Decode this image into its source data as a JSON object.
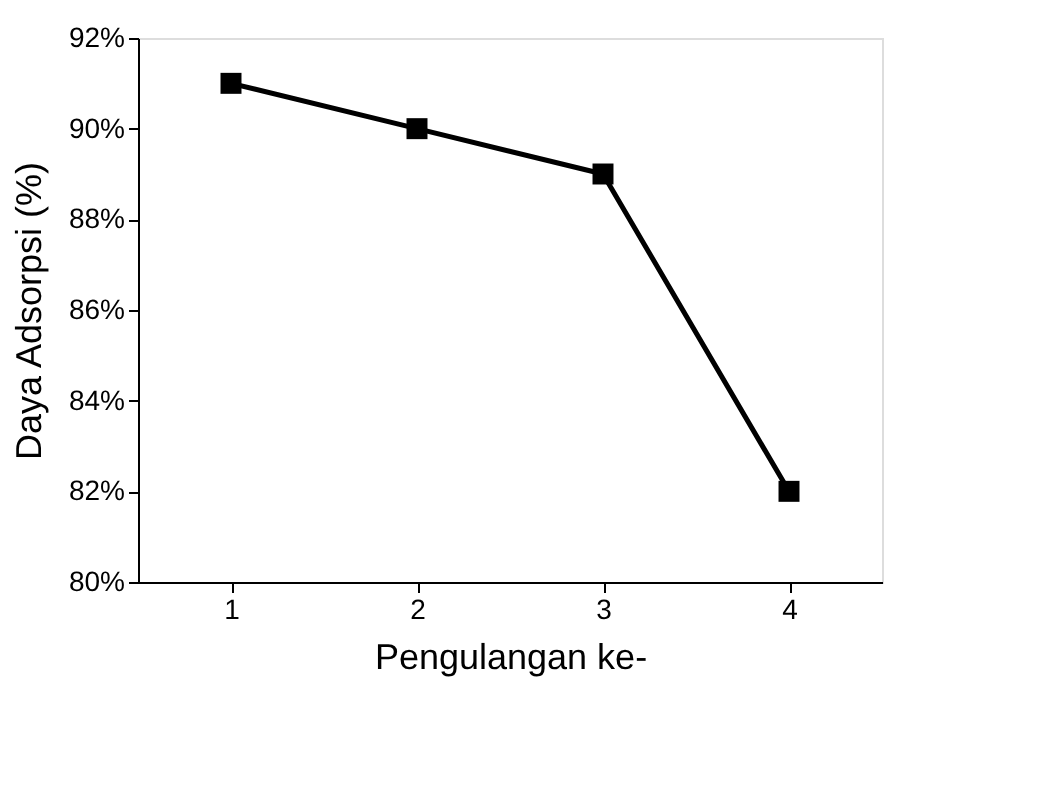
{
  "chart_data": {
    "type": "line",
    "xlabel": "Pengulangan ke-",
    "ylabel": "Daya Adsorpsi (%)",
    "categories": [
      "1",
      "2",
      "3",
      "4"
    ],
    "series": [
      {
        "color": "#000000",
        "values": [
          91,
          90,
          89,
          82
        ]
      }
    ],
    "ylim": [
      80,
      92
    ],
    "yticks": [
      {
        "value": 80,
        "label": "80%"
      },
      {
        "value": 82,
        "label": "82%"
      },
      {
        "value": 84,
        "label": "84%"
      },
      {
        "value": 86,
        "label": "86%"
      },
      {
        "value": 88,
        "label": "88%"
      },
      {
        "value": 90,
        "label": "90%"
      },
      {
        "value": 92,
        "label": "92%"
      }
    ],
    "marker": "square",
    "line_style": "solid",
    "grid": false,
    "legend": false
  }
}
